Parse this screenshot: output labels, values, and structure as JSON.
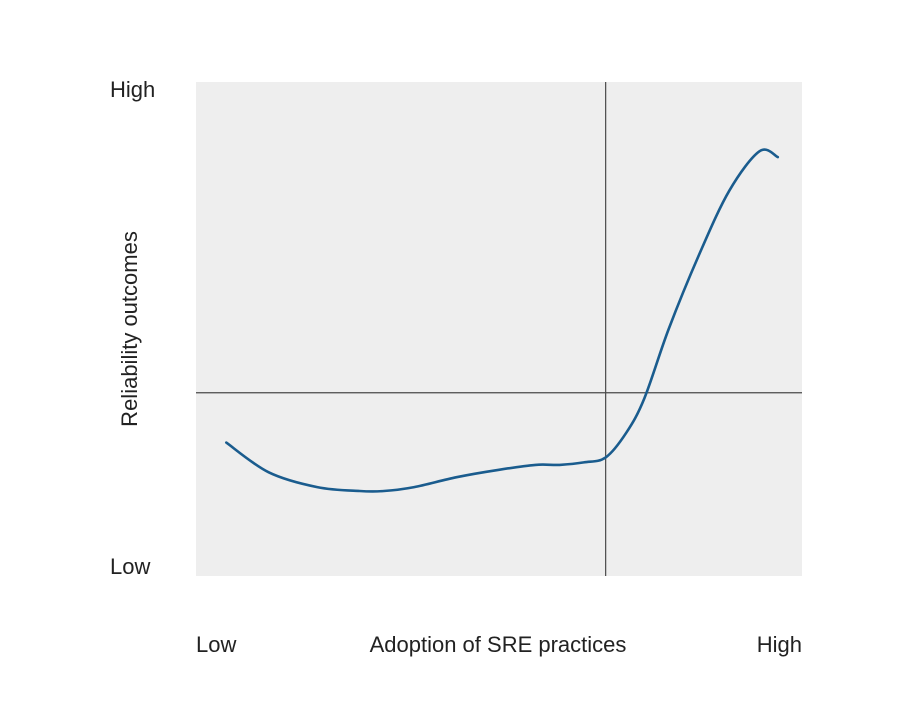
{
  "chart_data": {
    "type": "line",
    "title": "",
    "xlabel": "Adoption of SRE practices",
    "ylabel": "Reliability outcomes",
    "x_tick_labels": {
      "low": "Low",
      "high": "High"
    },
    "y_tick_labels": {
      "low": "Low",
      "high": "High"
    },
    "xlim": [
      0,
      1
    ],
    "ylim": [
      0,
      1
    ],
    "reference_lines": {
      "x": 0.676,
      "y": 0.371
    },
    "grid": false,
    "legend": "none",
    "series": [
      {
        "x": [
          0.05,
          0.12,
          0.2,
          0.27,
          0.31,
          0.36,
          0.43,
          0.5,
          0.56,
          0.6,
          0.64,
          0.676,
          0.71,
          0.74,
          0.78,
          0.83,
          0.88,
          0.93,
          0.96
        ],
        "values": [
          0.27,
          0.21,
          0.18,
          0.172,
          0.172,
          0.18,
          0.2,
          0.215,
          0.225,
          0.225,
          0.23,
          0.24,
          0.29,
          0.36,
          0.5,
          0.65,
          0.78,
          0.86,
          0.848
        ]
      }
    ]
  },
  "colors": {
    "plot_background": "#eeeeee",
    "line": "#1a5c8e",
    "reference_line": "#4a4a4a",
    "text": "#222222"
  }
}
